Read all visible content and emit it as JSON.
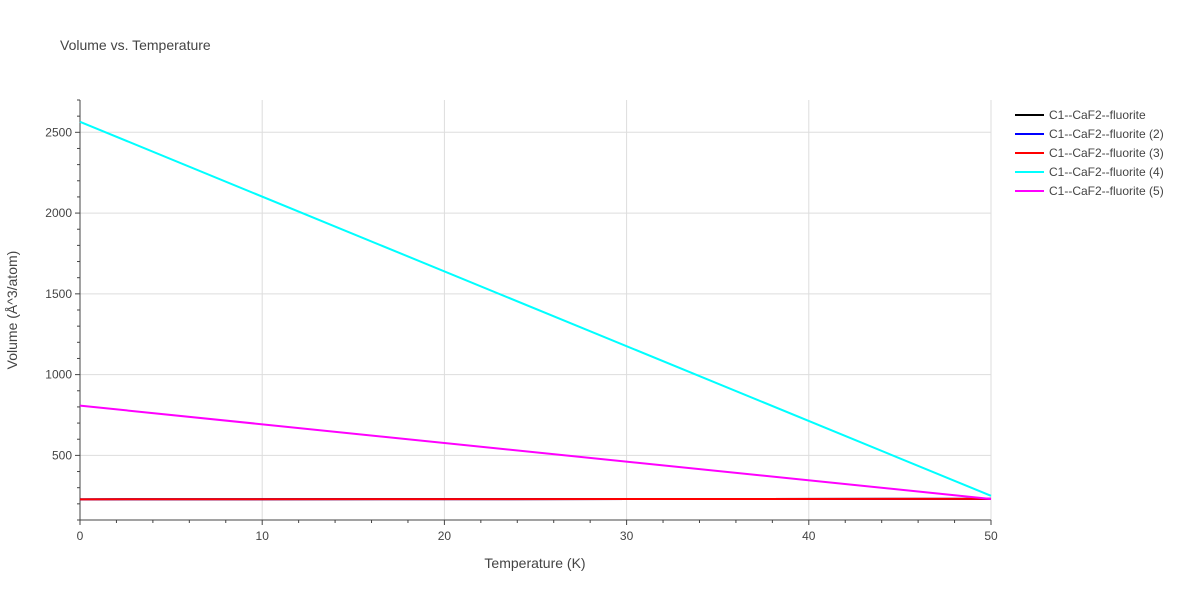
{
  "chart_data": {
    "type": "line",
    "title": "Volume vs. Temperature",
    "xlabel": "Temperature (K)",
    "ylabel": "Volume (Å^3/atom)",
    "xlim": [
      0,
      50
    ],
    "ylim": [
      100,
      2700
    ],
    "x_ticks": [
      0,
      10,
      20,
      30,
      40,
      50
    ],
    "y_ticks": [
      500,
      1000,
      1500,
      2000,
      2500
    ],
    "grid": true,
    "legend_position": "top-right",
    "series": [
      {
        "name": "C1--CaF2--fluorite",
        "color": "#000000",
        "x": [
          0,
          50
        ],
        "y": [
          228,
          231
        ]
      },
      {
        "name": "C1--CaF2--fluorite (2)",
        "color": "#0000ff",
        "x": [
          0,
          50
        ],
        "y": [
          228,
          231
        ]
      },
      {
        "name": "C1--CaF2--fluorite (3)",
        "color": "#ff0000",
        "x": [
          0,
          50
        ],
        "y": [
          228,
          231
        ]
      },
      {
        "name": "C1--CaF2--fluorite (4)",
        "color": "#00ffff",
        "x": [
          0,
          50
        ],
        "y": [
          2565,
          250
        ]
      },
      {
        "name": "C1--CaF2--fluorite (5)",
        "color": "#ff00ff",
        "x": [
          0,
          50
        ],
        "y": [
          808,
          230
        ]
      }
    ]
  }
}
